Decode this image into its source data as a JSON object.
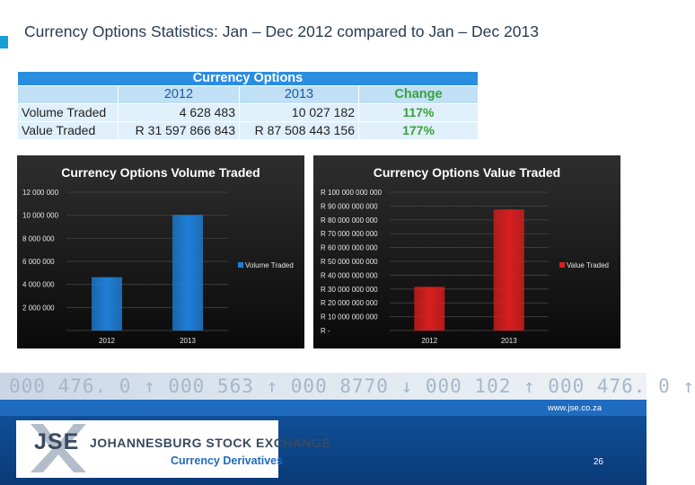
{
  "title": "Currency Options Statistics: Jan – Dec 2012 compared to Jan – Dec 2013",
  "table": {
    "heading": "Currency Options",
    "col_2012": "2012",
    "col_2013": "2013",
    "col_change": "Change",
    "rows": [
      {
        "label": "Volume Traded",
        "v2012": "4 628 483",
        "v2013": "10 027 182",
        "change": "117%"
      },
      {
        "label": "Value Traded",
        "v2012": "R  31 597 866 843",
        "v2013": "R 87 508 443 156",
        "change": "177%"
      }
    ]
  },
  "chart_data": [
    {
      "type": "bar",
      "title": "Currency Options Volume Traded",
      "categories": [
        "2012",
        "2013"
      ],
      "series": [
        {
          "name": "Volume Traded",
          "values": [
            4628483,
            10027182
          ],
          "color": "#1e7fd8"
        }
      ],
      "ylim": [
        0,
        12000000
      ],
      "yticks": [
        0,
        2000000,
        4000000,
        6000000,
        8000000,
        10000000,
        12000000
      ],
      "ytick_labels": [
        "",
        "2 000 000",
        "4 000 000",
        "6 000 000",
        "8 000 000",
        "10 000 000",
        "12 000 000"
      ],
      "legend": "right"
    },
    {
      "type": "bar",
      "title": "Currency Options Value Traded",
      "categories": [
        "2012",
        "2013"
      ],
      "series": [
        {
          "name": "Value Traded",
          "values": [
            31597866843,
            87508443156
          ],
          "color": "#d81e1e"
        }
      ],
      "ylim": [
        0,
        100000000000
      ],
      "yticks": [
        0,
        10000000000,
        20000000000,
        30000000000,
        40000000000,
        50000000000,
        60000000000,
        70000000000,
        80000000000,
        90000000000,
        100000000000
      ],
      "ytick_labels": [
        "R -",
        "R 10 000 000 000",
        "R 20 000 000 000",
        "R 30 000 000 000",
        "R 40 000 000 000",
        "R 50 000 000 000",
        "R 60 000 000 000",
        "R 70 000 000 000",
        "R 80 000 000 000",
        "R 90 000 000 000",
        "R 100 000 000 000"
      ],
      "legend": "right"
    }
  ],
  "ticker_text": "000 476. 0 ↑ 000 563 ↑ 000 8770 ↓ 000 102 ↑ 000 476. 0 ↑",
  "footer": {
    "url": "www.jse.co.za",
    "logo_letters": "JSE",
    "exchange_name": "JOHANNESBURG STOCK EXCHANGE",
    "division": "Currency Derivatives",
    "page_number": "26"
  },
  "colors": {
    "accent": "#1a9ed8",
    "footer_blue": "#1f6bbf"
  }
}
